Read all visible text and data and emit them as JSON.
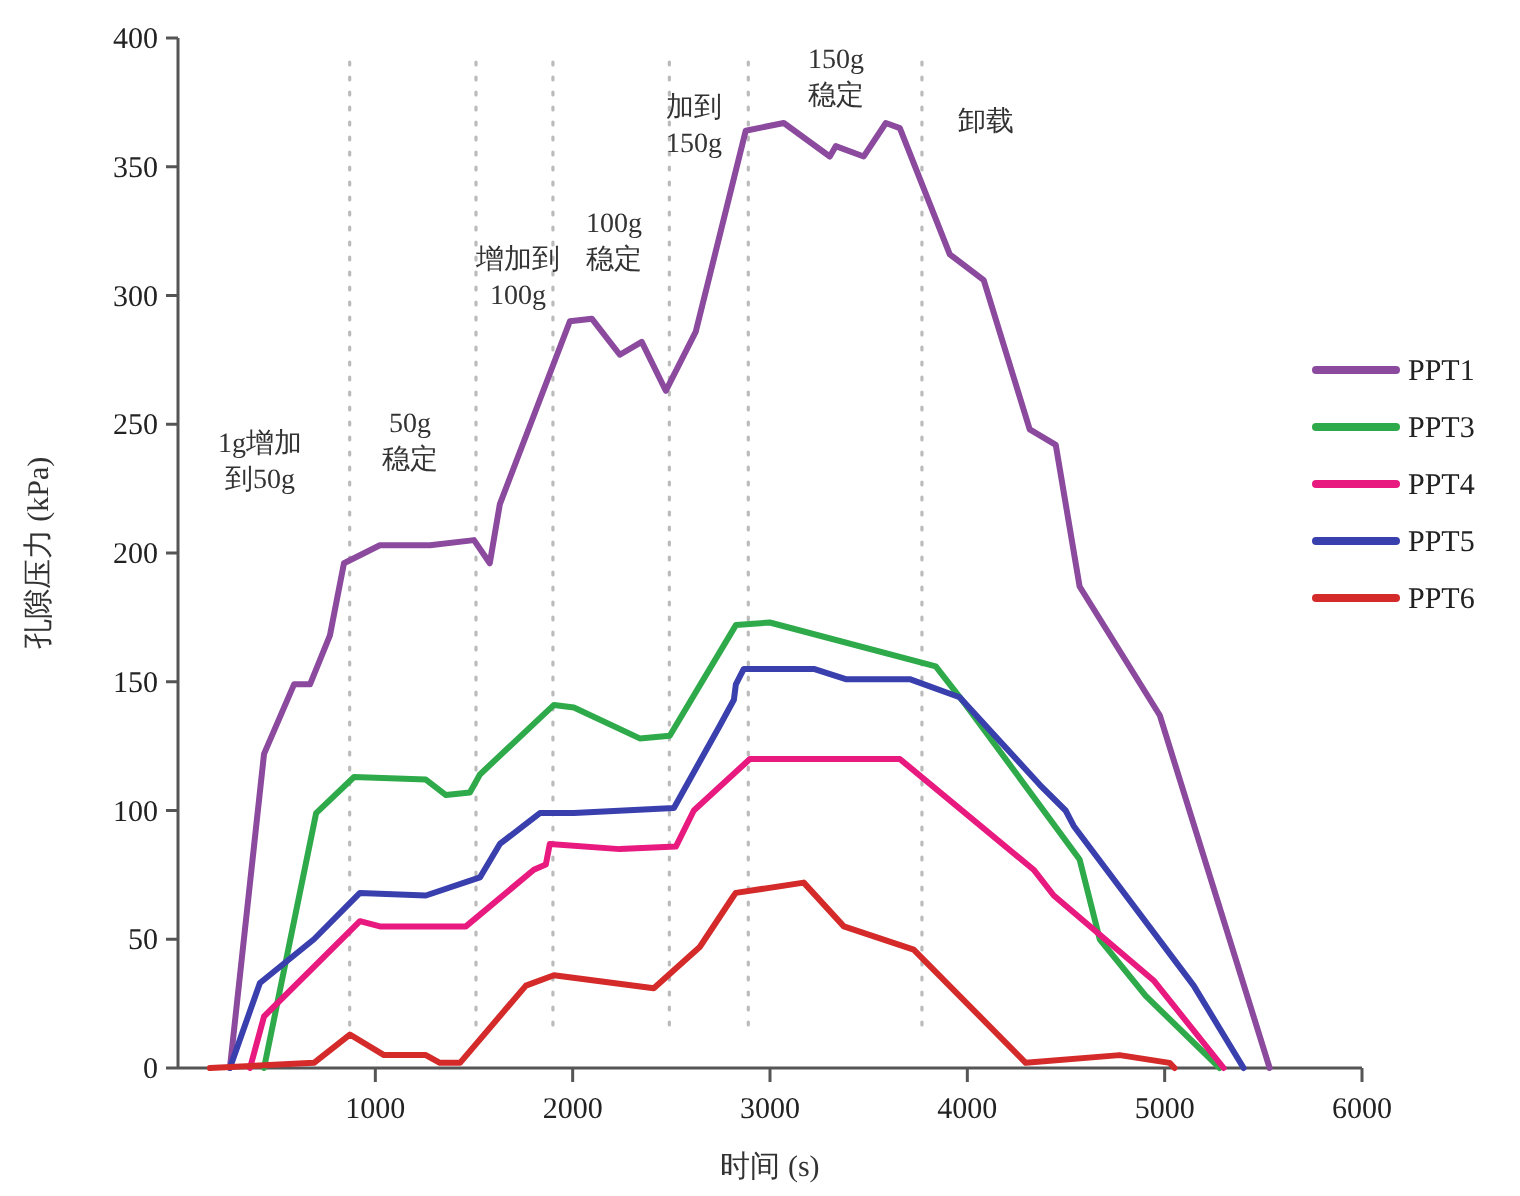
{
  "chart_data": {
    "type": "line",
    "xlabel": "时间 (s)",
    "ylabel": "孔隙压力 (kPa)",
    "xlim": [
      0,
      6000
    ],
    "xticks": [
      1000,
      2000,
      3000,
      4000,
      5000,
      6000
    ],
    "ylim": [
      0,
      400
    ],
    "yticks": [
      0,
      50,
      100,
      150,
      200,
      250,
      300,
      350,
      400
    ],
    "grid": false,
    "legend": "right",
    "line_style": "solid",
    "marker": "none",
    "ref_lines": [
      {
        "axis": "x",
        "value": 870,
        "color": "#bbbbbb",
        "line_style": "dotted"
      },
      {
        "axis": "x",
        "value": 1510,
        "color": "#bbbbbb",
        "line_style": "dotted"
      },
      {
        "axis": "x",
        "value": 1900,
        "color": "#bbbbbb",
        "line_style": "dotted"
      },
      {
        "axis": "x",
        "value": 2490,
        "color": "#bbbbbb",
        "line_style": "dotted"
      },
      {
        "axis": "x",
        "value": 2890,
        "color": "#bbbbbb",
        "line_style": "dotted"
      },
      {
        "axis": "x",
        "value": 3770,
        "color": "#bbbbbb",
        "line_style": "dotted"
      }
    ],
    "annotations": [
      "1g增加到50g",
      "50g稳定",
      "增加到100g",
      "100g稳定",
      "加到150g",
      "150g稳定",
      "卸载"
    ],
    "series": [
      {
        "name": "PPT1",
        "color": "#8b4a9e",
        "x": [
          263,
          436,
          588,
          669,
          770,
          841,
          1023,
          1277,
          1500,
          1580,
          1631,
          1986,
          2097,
          2239,
          2350,
          2472,
          2624,
          2877,
          3070,
          3303,
          3333,
          3475,
          3587,
          3658,
          3911,
          4083,
          4316,
          4448,
          4569,
          4975,
          5532
        ],
        "values": [
          0,
          122,
          149,
          149,
          168,
          196,
          203,
          203,
          205,
          196,
          219,
          290,
          291,
          277,
          282,
          263,
          286,
          364,
          367,
          354,
          358,
          354,
          367,
          365,
          316,
          306,
          248,
          242,
          187,
          137,
          0
        ]
      },
      {
        "name": "PPT3",
        "color": "#2eaa4a",
        "x": [
          436,
          700,
          892,
          1256,
          1358,
          1479,
          1530,
          1905,
          2006,
          2340,
          2492,
          2827,
          2999,
          3840,
          3992,
          4569,
          4671,
          4904,
          5279
        ],
        "values": [
          0,
          99,
          113,
          112,
          106,
          107,
          114,
          141,
          140,
          128,
          129,
          172,
          173,
          156,
          141,
          81,
          50,
          28,
          0
        ]
      },
      {
        "name": "PPT4",
        "color": "#e8197f",
        "x": [
          365,
          436,
          922,
          1023,
          1459,
          1803,
          1864,
          1884,
          2239,
          2523,
          2614,
          2898,
          3658,
          4336,
          4438,
          4944,
          5299
        ],
        "values": [
          0,
          20,
          57,
          55,
          55,
          77,
          79,
          87,
          85,
          86,
          100,
          120,
          120,
          77,
          67,
          34,
          0
        ]
      },
      {
        "name": "PPT5",
        "color": "#3a3fae",
        "x": [
          263,
          415,
          689,
          922,
          1256,
          1530,
          1631,
          1834,
          2006,
          2513,
          2746,
          2817,
          2827,
          2867,
          3222,
          3384,
          3708,
          3961,
          4367,
          4498,
          4539,
          5147,
          5400
        ],
        "values": [
          0,
          33,
          50,
          68,
          67,
          74,
          87,
          99,
          99,
          101,
          133,
          143,
          149,
          155,
          155,
          151,
          151,
          144,
          110,
          100,
          94,
          32,
          0
        ]
      },
      {
        "name": "PPT6",
        "color": "#d42a2a",
        "x": [
          162,
          689,
          871,
          1044,
          1256,
          1327,
          1429,
          1763,
          1905,
          2411,
          2644,
          2817,
          2827,
          3171,
          3374,
          3728,
          4296,
          4772,
          5025,
          5050
        ],
        "values": [
          0,
          2,
          13,
          5,
          5,
          2,
          2,
          32,
          36,
          31,
          47,
          67,
          68,
          72,
          55,
          46,
          2,
          5,
          2,
          0
        ]
      }
    ]
  }
}
